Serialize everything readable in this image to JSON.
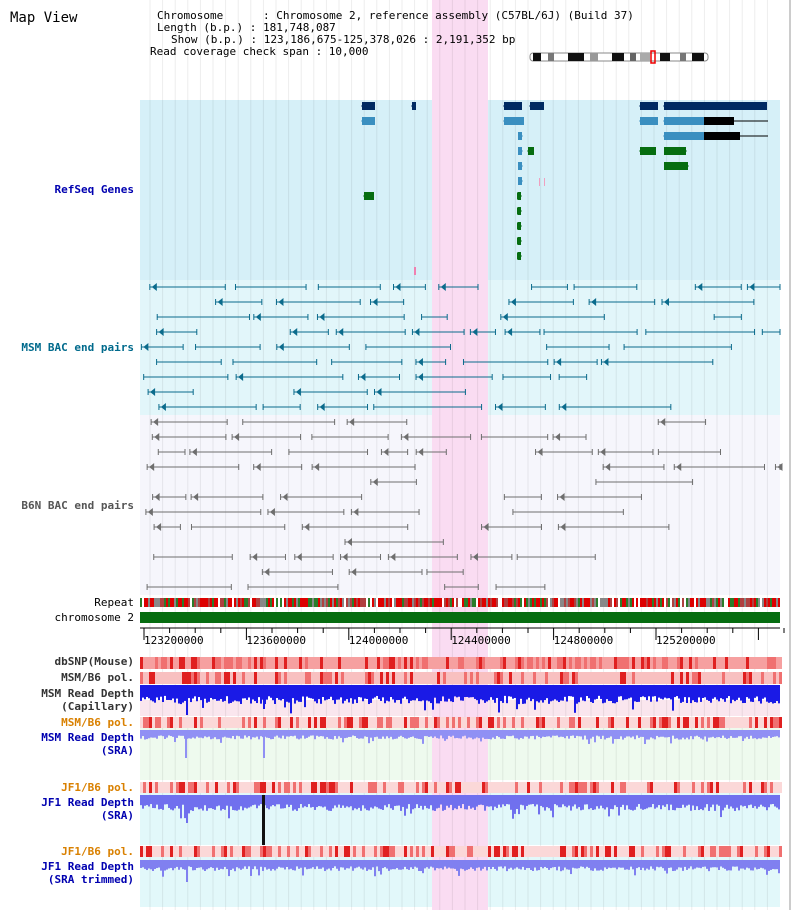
{
  "map_title": "Map View",
  "info": {
    "chromosome": "Chromosome      : Chromosome 2, reference assembly (C57BL/6J) (Build 37)",
    "length": "Length (b.p.) : 181,748,087",
    "show": "Show (b.p.) : 123,186,675-125,378,026 : 2,191,352 bp",
    "coverage": "Read coverage check span : 10,000"
  },
  "tracks": {
    "refseq": "RefSeq Genes",
    "msm_bac": "MSM BAC end pairs",
    "b6n_bac": "B6N BAC end pairs",
    "repeat": "Repeat",
    "chrom": "chromosome 2",
    "dbsnp": "dbSNP(Mouse)",
    "msm_pol1": "MSM/B6 pol.",
    "msm_depth_cap_1": "MSM Read Depth",
    "msm_depth_cap_2": "(Capillary)",
    "msm_pol2": "MSM/B6 pol.",
    "msm_depth_sra_1": "MSM Read Depth",
    "msm_depth_sra_2": "(SRA)",
    "jf1_pol1": "JF1/B6 pol.",
    "jf1_depth_1": "JF1 Read Depth",
    "jf1_depth_2": "(SRA)",
    "jf1_pol2": "JF1/B6 pol.",
    "jf1_trim_1": "JF1 Read Depth",
    "jf1_trim_2": "(SRA trimmed)"
  },
  "axis": {
    "ticks": [
      "123200000",
      "123600000",
      "124000000",
      "124400000",
      "124800000",
      "125200000"
    ]
  },
  "colors": {
    "refseq_bg": "#d6f0f8",
    "highlight": "#fadcf2",
    "gene_dark": "#002a62",
    "gene_mid": "#3a8fc0",
    "gene_green": "#066d10",
    "bac_teal": "#0b6b8c",
    "bac_gray": "#6e6e6e",
    "chrom_green": "#066d10",
    "depth_blue": "#1a1ae6",
    "depth_light": "#7070ee",
    "pol_red": "#e84040"
  }
}
